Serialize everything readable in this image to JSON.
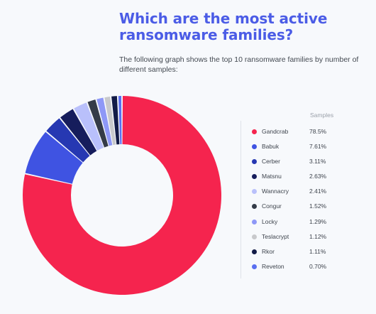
{
  "header": {
    "title": "Which are the most active ransomware families?",
    "subtitle": "The following graph shows the top 10 ransomware families by number of different samples:"
  },
  "legend": {
    "column_header": "Samples"
  },
  "chart_data": {
    "type": "pie",
    "donut": true,
    "title": "",
    "value_unit": "%",
    "start_angle": "top, clockwise",
    "legend_position": "right",
    "series": [
      {
        "name": "Samples",
        "values": [
          {
            "label": "Gandcrab",
            "display": "78.5%",
            "value": 78.5,
            "color": "#f5244e"
          },
          {
            "label": "Babuk",
            "display": "7.61%",
            "value": 7.61,
            "color": "#3f53e2"
          },
          {
            "label": "Cerber",
            "display": "3.11%",
            "value": 3.11,
            "color": "#2638b2"
          },
          {
            "label": "Matsnu",
            "display": "2.63%",
            "value": 2.63,
            "color": "#161d5c"
          },
          {
            "label": "Wannacry",
            "display": "2.41%",
            "value": 2.41,
            "color": "#b9c0fb"
          },
          {
            "label": "Congur",
            "display": "1.52%",
            "value": 1.52,
            "color": "#343b48"
          },
          {
            "label": "Locky",
            "display": "1.29%",
            "value": 1.29,
            "color": "#8e98f7"
          },
          {
            "label": "Teslacrypt",
            "display": "1.12%",
            "value": 1.12,
            "color": "#c8c9cc"
          },
          {
            "label": "Rkor",
            "display": "1.11%",
            "value": 1.11,
            "color": "#121b47"
          },
          {
            "label": "Reveton",
            "display": "0.70%",
            "value": 0.7,
            "color": "#5a6ff0"
          }
        ]
      }
    ]
  }
}
